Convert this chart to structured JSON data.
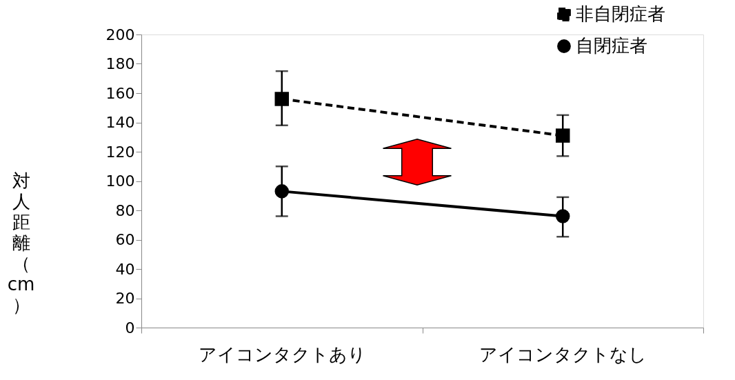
{
  "chart_data": {
    "type": "line",
    "ylabel": "対人距離（cm）",
    "categories": [
      "アイコンタクトあり",
      "アイコンタクトなし"
    ],
    "ylim": [
      0,
      200
    ],
    "yticks": [
      0,
      20,
      40,
      60,
      80,
      100,
      120,
      140,
      160,
      180,
      200
    ],
    "grid": false,
    "legend": "top right",
    "series": [
      {
        "name": "非自閉症者",
        "color": "#000000",
        "values": [
          156,
          131
        ],
        "errors": [
          [
            138,
            175
          ],
          [
            117,
            145
          ]
        ],
        "marker": "square",
        "line_style": "dashed"
      },
      {
        "name": "自閉症者",
        "color": "#000000",
        "values": [
          93,
          76
        ],
        "errors": [
          [
            76,
            110
          ],
          [
            62,
            89
          ]
        ],
        "marker": "circle",
        "line_style": "solid"
      }
    ]
  }
}
